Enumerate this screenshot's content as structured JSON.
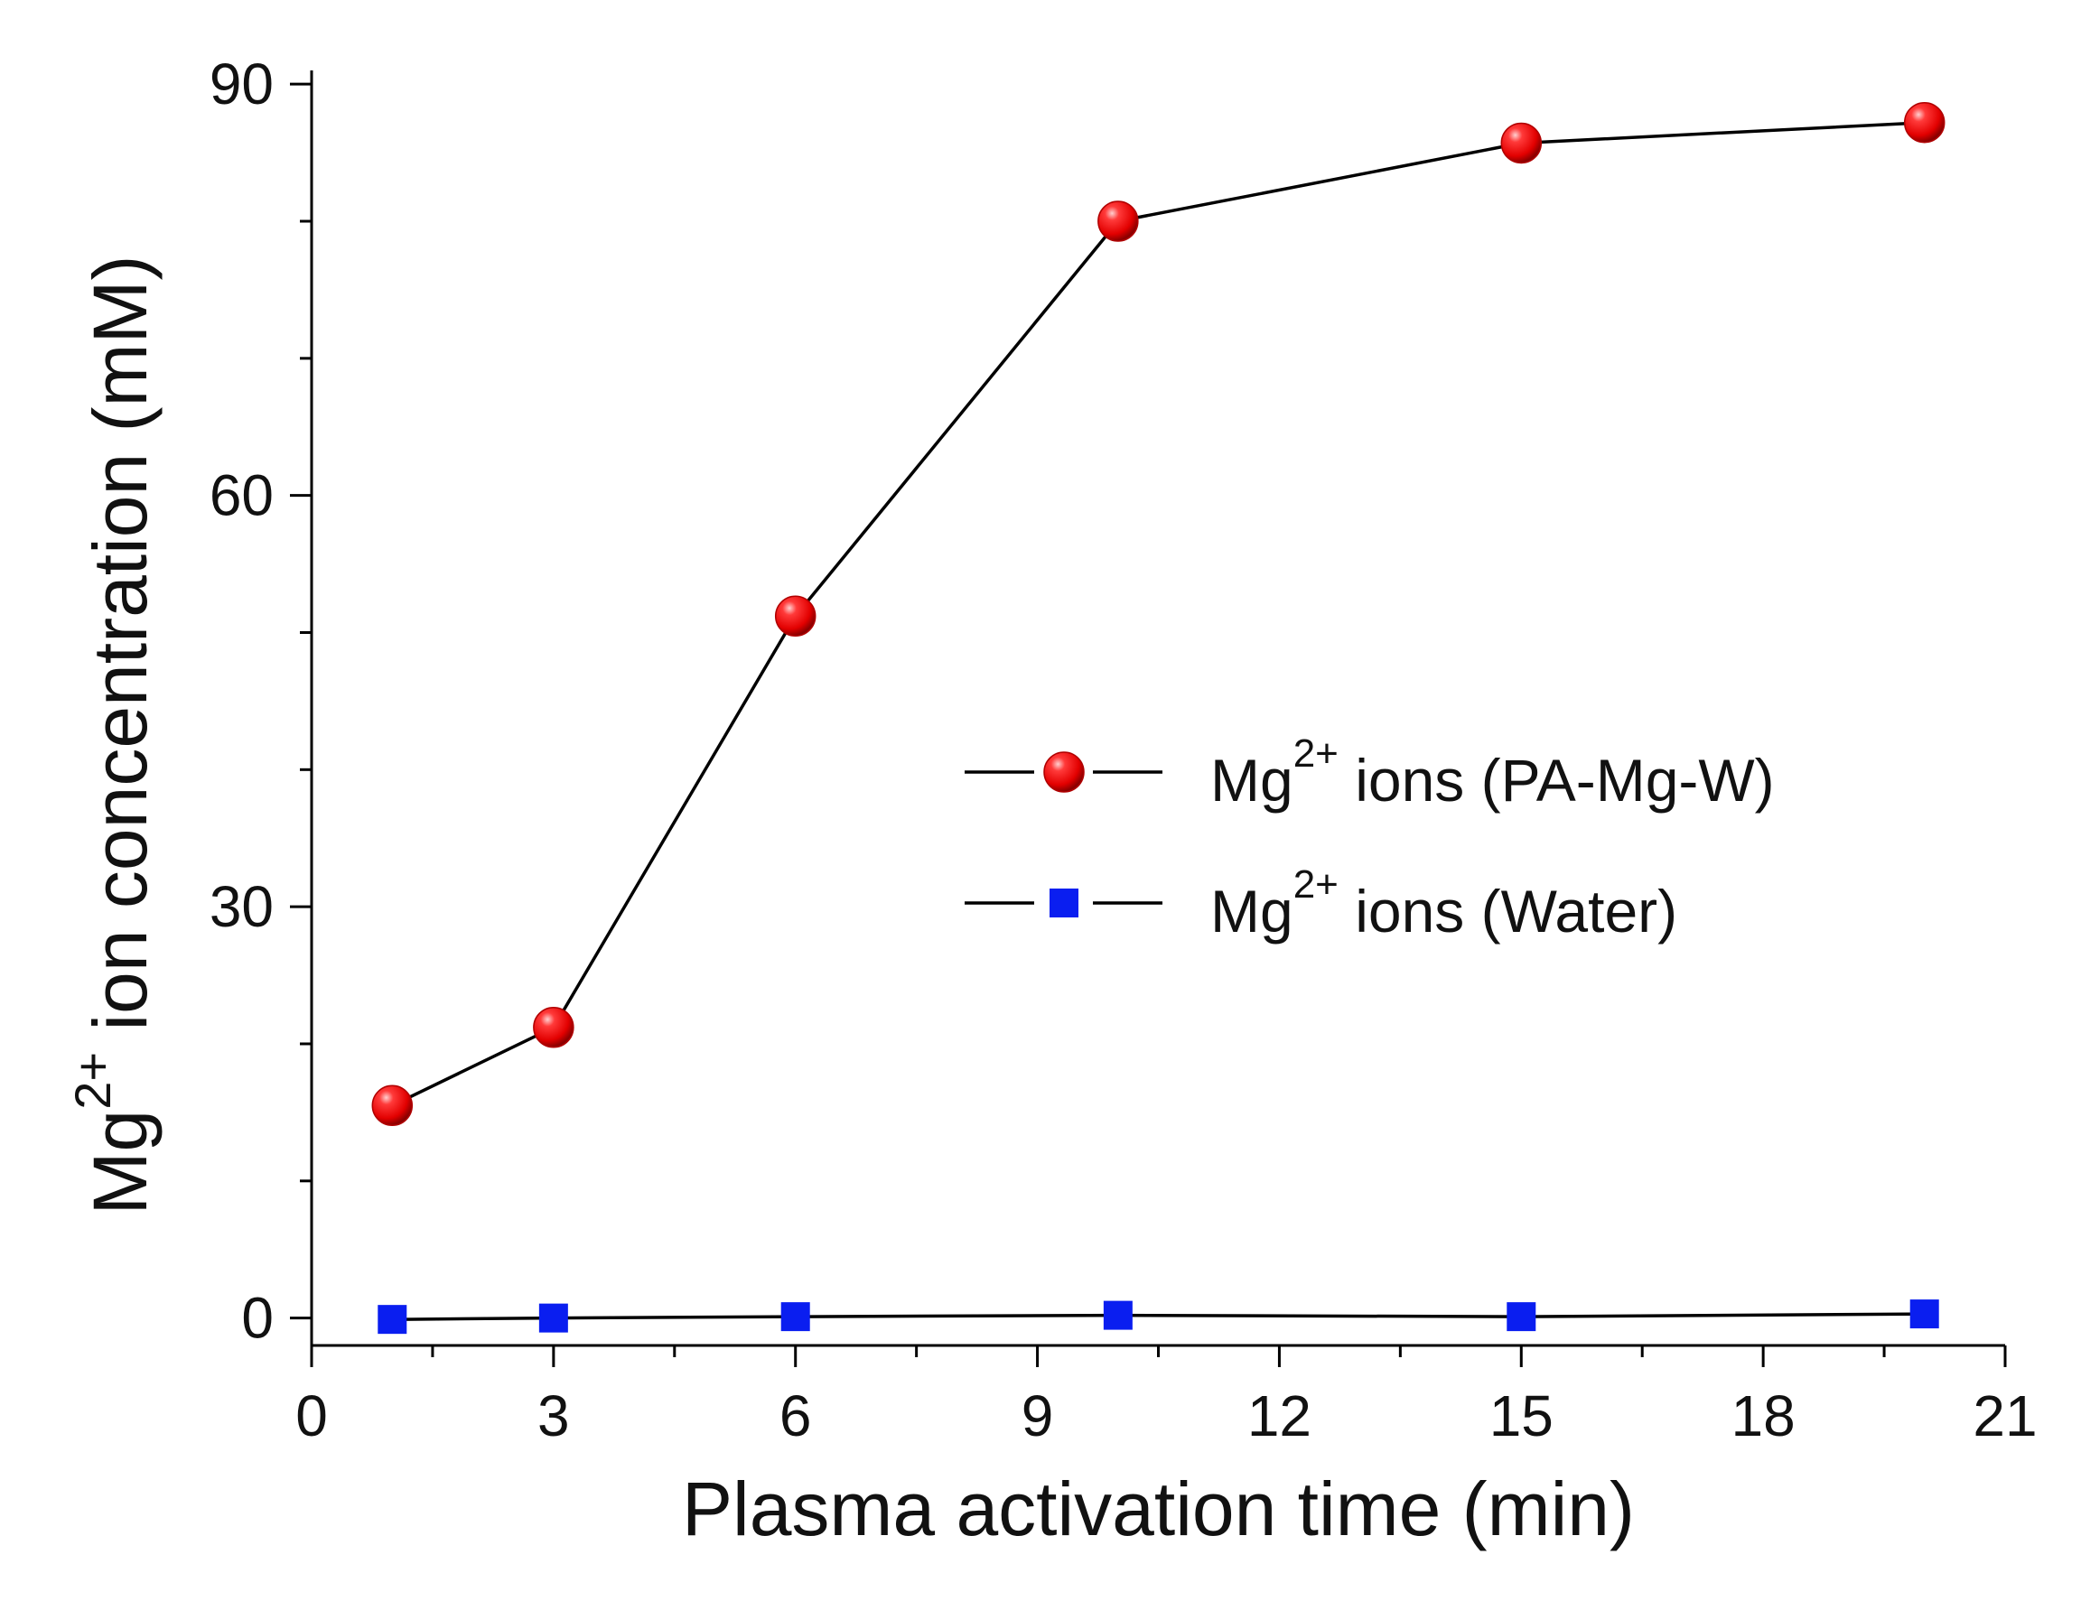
{
  "chart_data": {
    "type": "line",
    "title": "",
    "xlabel": "Plasma activation time (min)",
    "ylabel": {
      "base": "Mg",
      "superscript": "2+",
      "rest": " ion concentration (mM)"
    },
    "xlim": [
      0,
      21
    ],
    "ylim": [
      -2,
      91
    ],
    "x_ticks": [
      0,
      3,
      6,
      9,
      12,
      15,
      18,
      21
    ],
    "y_ticks": [
      0,
      30,
      60,
      90
    ],
    "x_minor_step": 1.5,
    "y_minor_step": 10,
    "x_tick_labels": [
      "0",
      "3",
      "6",
      "9",
      "12",
      "15",
      "18",
      "21"
    ],
    "y_tick_labels": [
      "0",
      "30",
      "60",
      "90"
    ],
    "x": [
      1,
      3,
      6,
      10,
      15,
      20
    ],
    "series": [
      {
        "name": "Mg2+ ions (PA-Mg-W)",
        "legend_base": "Mg",
        "legend_sup": "2+",
        "legend_rest": " ions (PA-Mg-W)",
        "marker": "circle",
        "color": "#e8000b",
        "line_color": "#000000",
        "values": [
          15.5,
          21.2,
          51.2,
          80.0,
          85.7,
          87.2
        ]
      },
      {
        "name": "Mg2+ ions (Water)",
        "legend_base": "Mg",
        "legend_sup": "2+",
        "legend_rest": " ions (Water)",
        "marker": "square",
        "color": "#0a1ef0",
        "line_color": "#000000",
        "values": [
          -0.1,
          0.0,
          0.1,
          0.2,
          0.1,
          0.3
        ]
      }
    ],
    "legend_position": "center-right",
    "grid": false
  }
}
